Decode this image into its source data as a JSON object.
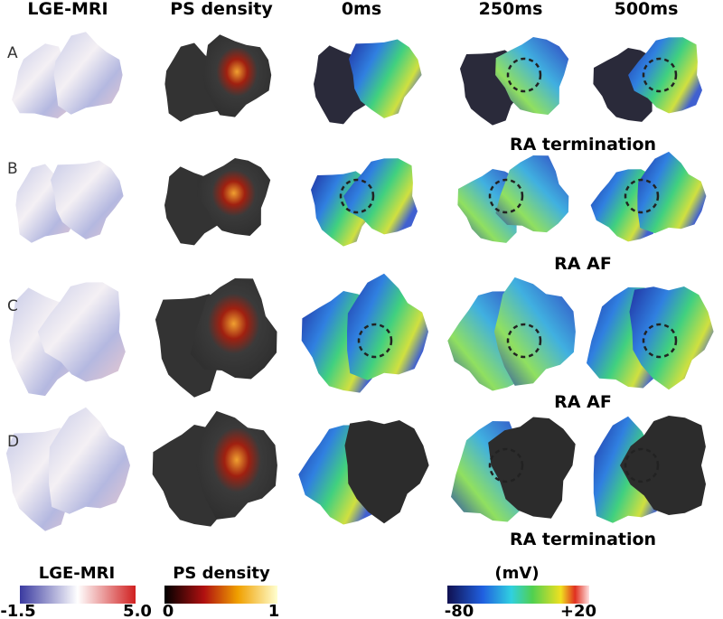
{
  "headers": [
    "LGE-MRI",
    "PS density",
    "0ms",
    "250ms",
    "500ms"
  ],
  "rows": [
    {
      "label": "A",
      "annotation": "RA termination"
    },
    {
      "label": "B",
      "annotation": "RA AF"
    },
    {
      "label": "C",
      "annotation": "RA AF"
    },
    {
      "label": "D",
      "annotation": "RA termination"
    }
  ],
  "colorbars": [
    {
      "title": "LGE-MRI",
      "min": "-1.5",
      "max": "5.0"
    },
    {
      "title": "PS density",
      "min": "0",
      "max": "1"
    },
    {
      "title": "(mV)",
      "min": "-80",
      "max": "+20"
    }
  ]
}
